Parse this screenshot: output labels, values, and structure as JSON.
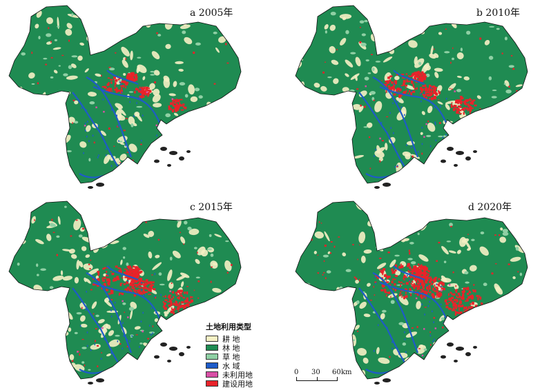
{
  "panels": [
    {
      "label": "a  2005年",
      "urban": 0.55
    },
    {
      "label": "b  2010年",
      "urban": 0.75
    },
    {
      "label": "c  2015年",
      "urban": 0.95
    },
    {
      "label": "d  2020年",
      "urban": 1.15
    }
  ],
  "legend": {
    "title": "土地利用类型",
    "items": [
      {
        "label": "耕 地",
        "color": "#f5f0c4"
      },
      {
        "label": "林 地",
        "color": "#1f8b52"
      },
      {
        "label": "草 地",
        "color": "#8fd0a4"
      },
      {
        "label": "水 域",
        "color": "#1e5bc8"
      },
      {
        "label": "未利用地",
        "color": "#d94fa6"
      },
      {
        "label": "建设用地",
        "color": "#e8232a"
      }
    ]
  },
  "scale_bar": {
    "ticks": [
      "0",
      "30",
      "60"
    ],
    "unit": "km"
  }
}
